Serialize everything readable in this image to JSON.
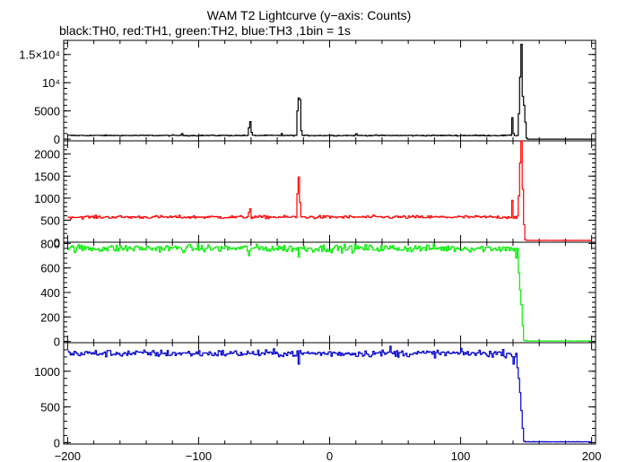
{
  "chart_data": {
    "type": "line",
    "title": "WAM T2 Lightcurve (y−axis: Counts)",
    "subtitle": "black:TH0, red:TH1, green:TH2, blue:TH3 ,1bin = 1s",
    "x_ticks": [
      "−200",
      "−100",
      "0",
      "100",
      "200"
    ],
    "xlim": [
      -203,
      203
    ],
    "panels": [
      {
        "name": "TH0",
        "color": "#000000",
        "ylim": [
          -300,
          17500
        ],
        "y_ticks": [
          {
            "value": 0,
            "label": "0"
          },
          {
            "value": 5000,
            "label": "5000"
          },
          {
            "value": 10000,
            "label": "10⁴"
          },
          {
            "value": 15000,
            "label": "1.5×10⁴"
          }
        ],
        "baseline": 650,
        "noise": 60,
        "drop_level": 0,
        "features": [
          {
            "x": -113,
            "y": 1000
          },
          {
            "x": -62,
            "y": 2000
          },
          {
            "x": -61,
            "y": 3100
          },
          {
            "x": -60,
            "y": 1200
          },
          {
            "x": -37,
            "y": 1000
          },
          {
            "x": -25,
            "y": 5000
          },
          {
            "x": -24,
            "y": 7300
          },
          {
            "x": -23,
            "y": 7000
          },
          {
            "x": -22,
            "y": 1500
          },
          {
            "x": 20,
            "y": 950
          },
          {
            "x": 139,
            "y": 3800
          },
          {
            "x": 140,
            "y": 1000
          },
          {
            "x": 144,
            "y": 4500
          },
          {
            "x": 145,
            "y": 11000
          },
          {
            "x": 146,
            "y": 16800
          },
          {
            "x": 147,
            "y": 7600
          },
          {
            "x": 148,
            "y": 6000
          }
        ],
        "drop": [
          {
            "x": 149,
            "y": 3000
          },
          {
            "x": 150,
            "y": 200
          }
        ]
      },
      {
        "name": "TH1",
        "color": "#ff0000",
        "ylim": [
          0,
          2300
        ],
        "y_ticks": [
          {
            "value": 0,
            "label": "0"
          },
          {
            "value": 500,
            "label": "500"
          },
          {
            "value": 1000,
            "label": "1000"
          },
          {
            "value": 1500,
            "label": "1500"
          },
          {
            "value": 2000,
            "label": "2000"
          }
        ],
        "baseline": 570,
        "noise": 25,
        "drop_level": 40,
        "features": [
          {
            "x": -62,
            "y": 680
          },
          {
            "x": -61,
            "y": 760
          },
          {
            "x": -25,
            "y": 1100
          },
          {
            "x": -24,
            "y": 1480
          },
          {
            "x": -23,
            "y": 900
          },
          {
            "x": 139,
            "y": 950
          },
          {
            "x": 144,
            "y": 1050
          },
          {
            "x": 145,
            "y": 1800
          },
          {
            "x": 146,
            "y": 2300
          },
          {
            "x": 147,
            "y": 1200
          }
        ],
        "drop": [
          {
            "x": 148,
            "y": 400
          },
          {
            "x": 149,
            "y": 60
          }
        ]
      },
      {
        "name": "TH2",
        "color": "#00ee00",
        "ylim": [
          -10,
          810
        ],
        "y_ticks": [
          {
            "value": 0,
            "label": "0"
          },
          {
            "value": 200,
            "label": "200"
          },
          {
            "value": 400,
            "label": "400"
          },
          {
            "value": 600,
            "label": "600"
          },
          {
            "value": 800,
            "label": "800"
          }
        ],
        "baseline": 760,
        "noise": 22,
        "drop_level": 3,
        "features": [
          {
            "x": -62,
            "y": 700
          },
          {
            "x": -24,
            "y": 690
          }
        ],
        "drop": [
          {
            "x": 140,
            "y": 740
          },
          {
            "x": 142,
            "y": 680
          },
          {
            "x": 144,
            "y": 560
          },
          {
            "x": 145,
            "y": 420
          },
          {
            "x": 146,
            "y": 300
          },
          {
            "x": 147,
            "y": 130
          },
          {
            "x": 148,
            "y": 10
          }
        ]
      },
      {
        "name": "TH3",
        "color": "#0000cc",
        "ylim": [
          -20,
          1400
        ],
        "y_ticks": [
          {
            "value": 0,
            "label": "0"
          },
          {
            "value": 500,
            "label": "500"
          },
          {
            "value": 1000,
            "label": "1000"
          }
        ],
        "baseline": 1250,
        "noise": 35,
        "drop_level": 10,
        "features": [
          {
            "x": -24,
            "y": 1100
          },
          {
            "x": 46,
            "y": 1350
          },
          {
            "x": 140,
            "y": 1100
          }
        ],
        "drop": [
          {
            "x": 141,
            "y": 1200
          },
          {
            "x": 143,
            "y": 1050
          },
          {
            "x": 144,
            "y": 900
          },
          {
            "x": 145,
            "y": 700
          },
          {
            "x": 146,
            "y": 450
          },
          {
            "x": 147,
            "y": 200
          },
          {
            "x": 148,
            "y": 20
          }
        ]
      }
    ]
  }
}
